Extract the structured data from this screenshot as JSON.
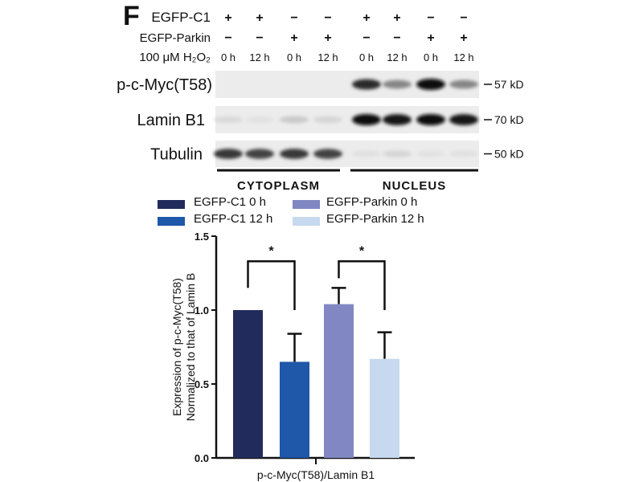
{
  "panel_letter": "F",
  "blot": {
    "condition_rows": [
      {
        "label": "EGFP-C1",
        "values": [
          "+",
          "+",
          "−",
          "−",
          "+",
          "+",
          "−",
          "−"
        ]
      },
      {
        "label": "EGFP-Parkin",
        "values": [
          "−",
          "−",
          "+",
          "+",
          "−",
          "−",
          "+",
          "+"
        ]
      },
      {
        "label": "100 μM H₂O₂",
        "values": [
          "0 h",
          "12 h",
          "0 h",
          "12 h",
          "0 h",
          "12 h",
          "0 h",
          "12 h"
        ]
      }
    ],
    "proteins": [
      {
        "label": "p-c-Myc(T58)",
        "marker": "57 kD",
        "intensity": [
          0,
          0,
          0,
          0,
          0.85,
          0.45,
          1.0,
          0.45
        ]
      },
      {
        "label": "Lamin B1",
        "marker": "70 kD",
        "intensity": [
          0.08,
          0.04,
          0.15,
          0.1,
          1.0,
          0.95,
          1.0,
          0.95
        ]
      },
      {
        "label": "Tubulin",
        "marker": "50 kD",
        "intensity": [
          0.8,
          0.75,
          0.8,
          0.75,
          0.05,
          0.1,
          0.04,
          0.05
        ]
      }
    ],
    "fractions": [
      "CYTOPLASM",
      "NUCLEUS"
    ]
  },
  "chart_data": {
    "type": "bar",
    "xlabel": "p-c-Myc(T58)/Lamin B1",
    "ylabel": [
      "Expression of p-c-Myc(T58)",
      "Normalized to that of Lamin B"
    ],
    "ylim": [
      0,
      1.5
    ],
    "yticks": [
      "0.0",
      "0.5",
      "1.0",
      "1.5"
    ],
    "legend_position": "top",
    "series": [
      {
        "name": "EGFP-C1 0 h",
        "value": 1.0,
        "error": 0,
        "color": "#222c5c"
      },
      {
        "name": "EGFP-C1 12 h",
        "value": 0.65,
        "error": 0.19,
        "color": "#1f57a9"
      },
      {
        "name": "EGFP-Parkin 0 h",
        "value": 1.04,
        "error": 0.11,
        "color": "#8087c2"
      },
      {
        "name": "EGFP-Parkin 12 h",
        "value": 0.67,
        "error": 0.18,
        "color": "#c6d9ee"
      }
    ],
    "significance": [
      {
        "between": [
          0,
          1
        ],
        "label": "*"
      },
      {
        "between": [
          2,
          3
        ],
        "label": "*"
      }
    ]
  }
}
